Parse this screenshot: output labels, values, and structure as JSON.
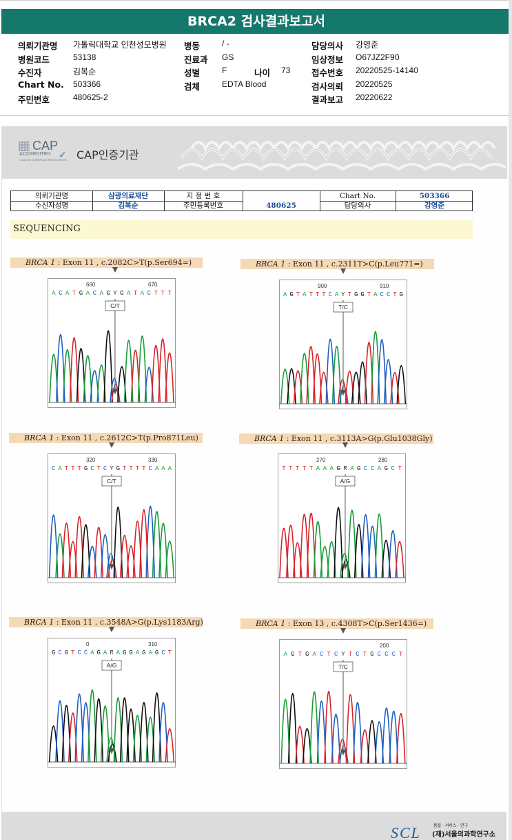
{
  "title": "BRCA2 검사결과보고서",
  "info": {
    "col1": [
      {
        "label": "의뢰기관명",
        "value": "가톨릭대학교 인천성모병원"
      },
      {
        "label": "병원코드",
        "value": "53138"
      },
      {
        "label": "수진자",
        "value": "김복순"
      },
      {
        "label": "Chart No.",
        "value": "503366"
      },
      {
        "label": "주민번호",
        "value": "480625-2"
      }
    ],
    "col2": [
      {
        "label": "병동",
        "value": "/ -"
      },
      {
        "label": "진료과",
        "value": "GS"
      },
      {
        "label": "성별",
        "value": "F"
      },
      {
        "label": "검체",
        "value": "EDTA Blood"
      }
    ],
    "age_label": "나이",
    "age_value": "73",
    "col3": [
      {
        "label": "담당의사",
        "value": "강영준"
      },
      {
        "label": "임상정보",
        "value": "O67JZ2F90"
      },
      {
        "label": "접수번호",
        "value": "20220525-14140"
      },
      {
        "label": "검사의뢰",
        "value": "20220525"
      },
      {
        "label": "결과보고",
        "value": "20220622"
      }
    ]
  },
  "cap": {
    "logo_text": "CAP",
    "accredited": "ACCREDITED",
    "college": "COLLEGE of AMERICAN PATHOLOGISTS",
    "title": "CAP인증기관"
  },
  "patient_table": {
    "inst_label": "의뢰기관명",
    "inst_value": "삼광의료재단",
    "name_label": "수신자성명",
    "name_value": "김복순",
    "desig_label": "지 정 번 호",
    "rrn_label": "주민등록번호",
    "rrn_value": "480625",
    "chart_label": "Chart No.",
    "chart_value": "503366",
    "doctor_label": "담당의사",
    "doctor_value": "강영준"
  },
  "section": "SEQUENCING",
  "panels": [
    {
      "gene": "BRCA 1",
      "desc": " : Exon 11 , c.2082C>T(p.Ser694=)",
      "seq": "ACATGACAGYGATACTTT",
      "n1": "660",
      "n2": "670",
      "call": "C/T"
    },
    {
      "gene": "BRCA 1",
      "desc": " : Exon 11 , c.2311T>C(p.Leu771=)",
      "seq": "AGTATTTCAYTGGTACCTG",
      "n1": "900",
      "n2": "910",
      "call": "T/C"
    },
    {
      "gene": "BRCA 1",
      "desc": " : Exon 11 , c.2612C>T(p.Pro871Leu)",
      "seq": "CATTTGCTCYGTTTTCAAA",
      "n1": "320",
      "n2": "330",
      "call": "C/T"
    },
    {
      "gene": "BRCA 1",
      "desc": " : Exon 11 , c.3113A>G(p.Glu1038Gly)",
      "seq": "TTTTTAAAGRAGCCAGCT",
      "n1": "270",
      "n2": "280",
      "call": "A/G"
    },
    {
      "gene": "BRCA 1",
      "desc": " : Exon 11 , c.3548A>G(p.Lys1183Arg)",
      "seq": "GCGTCCAGARAGGAGAGCT",
      "n1": "0",
      "n2": "310",
      "call": "A/G"
    },
    {
      "gene": "BRCA 1",
      "desc": " : Exon 13 , c.4308T>C(p.Ser1436=)",
      "seq": "AGTGACTCYTCTGCCCT",
      "n1": "",
      "n2": "200",
      "call": "T/C"
    }
  ],
  "footer": {
    "logo": "SCL",
    "tagline": "품질 · 서비스 · 연구",
    "institute": "(재)서울의과학연구소"
  },
  "colors": {
    "band": "#14786b",
    "label_bg": "#f6d9b4",
    "seq_bg": "#fbf8d2",
    "A": "#1a9c3a",
    "C": "#1f5fbf",
    "G": "#111111",
    "T": "#d8232a"
  }
}
